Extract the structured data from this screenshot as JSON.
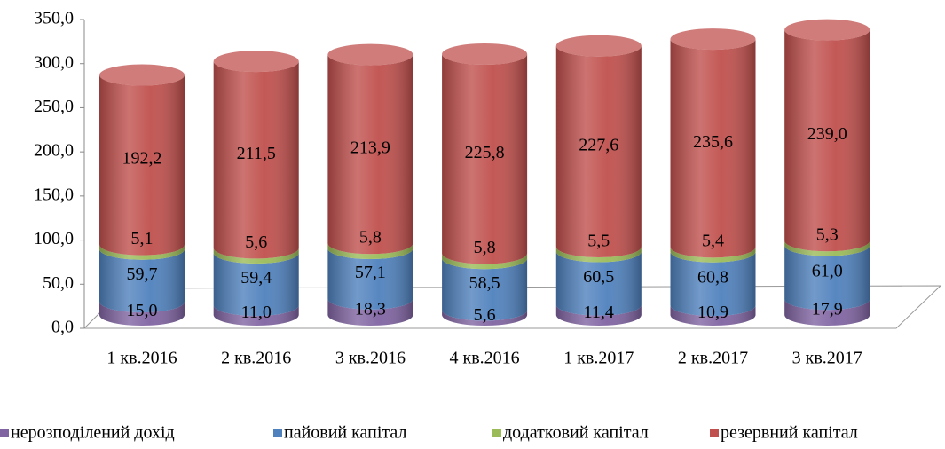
{
  "chart_data": {
    "type": "bar3d_stacked",
    "categories": [
      "1 кв.2016",
      "2 кв.2016",
      "3 кв.2016",
      "4 кв.2016",
      "1 кв.2017",
      "2 кв.2017",
      "3 кв.2017"
    ],
    "series": [
      {
        "name": "нерозподілений дохід",
        "color": "#8064a2",
        "values": [
          15.0,
          11.0,
          18.3,
          5.6,
          11.4,
          10.9,
          17.9
        ],
        "value_labels": [
          "15,0",
          "11,0",
          "18,3",
          "5,6",
          "11,4",
          "10,9",
          "17,9"
        ]
      },
      {
        "name": "пайовий капітал",
        "color": "#4f81bd",
        "values": [
          59.7,
          59.4,
          57.1,
          58.5,
          60.5,
          60.8,
          61.0
        ],
        "value_labels": [
          "59,7",
          "59,4",
          "57,1",
          "58,5",
          "60,5",
          "60,8",
          "61,0"
        ]
      },
      {
        "name": "додатковий капітал",
        "color": "#9bbb59",
        "values": [
          5.1,
          5.6,
          5.8,
          5.8,
          5.5,
          5.4,
          5.3
        ],
        "value_labels": [
          "5,1",
          "5,6",
          "5,8",
          "5,8",
          "5,5",
          "5,4",
          "5,3"
        ]
      },
      {
        "name": "резервний капітал",
        "color": "#c0504d",
        "values": [
          192.2,
          211.5,
          213.9,
          225.8,
          227.6,
          235.6,
          239.0
        ],
        "value_labels": [
          "192,2",
          "211,5",
          "213,9",
          "225,8",
          "227,6",
          "235,6",
          "239,0"
        ]
      }
    ],
    "ylim": [
      0,
      350
    ],
    "yticks": [
      {
        "value": 0,
        "label": "0,0"
      },
      {
        "value": 50,
        "label": "50,0"
      },
      {
        "value": 100,
        "label": "100,0"
      },
      {
        "value": 150,
        "label": "150,0"
      },
      {
        "value": 200,
        "label": "200,0"
      },
      {
        "value": 250,
        "label": "250,0"
      },
      {
        "value": 300,
        "label": "300,0"
      },
      {
        "value": 350,
        "label": "350,0"
      }
    ],
    "legend": "bottom"
  }
}
